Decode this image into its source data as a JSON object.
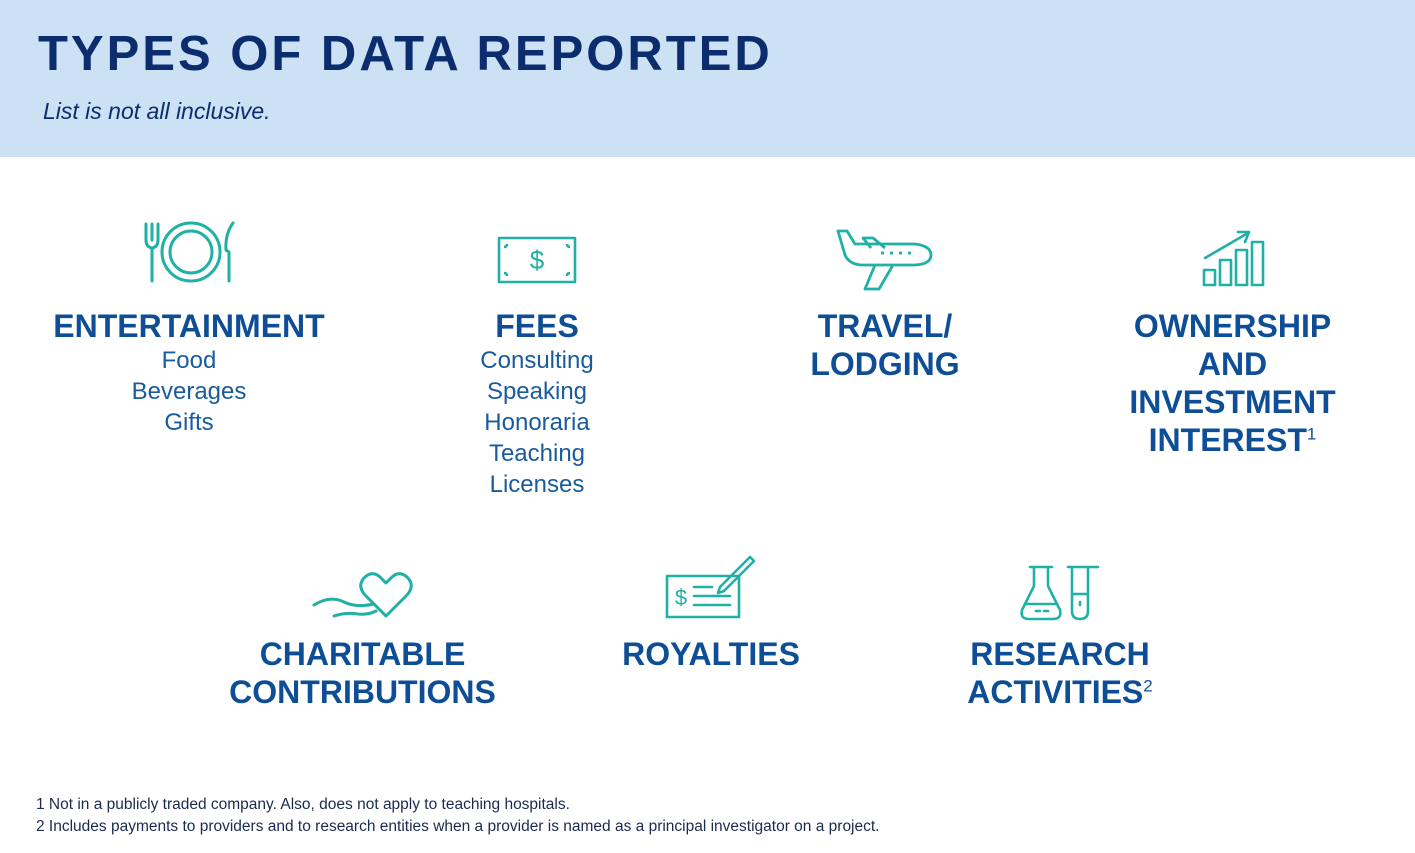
{
  "header": {
    "title": "TYPES OF DATA REPORTED",
    "subtitle": "List is not all inclusive."
  },
  "colors": {
    "header_bg": "#cde1f4",
    "title": "#0b2d6e",
    "category_title": "#0e4e96",
    "icon": "#1fb0a6"
  },
  "categories": [
    {
      "icon": "plate-fork-knife-icon",
      "title_lines": [
        "ENTERTAINMENT"
      ],
      "items": [
        "Food",
        "Beverages",
        "Gifts"
      ]
    },
    {
      "icon": "dollar-bill-icon",
      "title_lines": [
        "FEES"
      ],
      "items": [
        "Consulting",
        "Speaking",
        "Honoraria",
        "Teaching",
        "Licenses"
      ]
    },
    {
      "icon": "airplane-icon",
      "title_lines": [
        "TRAVEL/",
        "LODGING"
      ],
      "items": []
    },
    {
      "icon": "growth-chart-icon",
      "title_lines": [
        "OWNERSHIP",
        "AND",
        "INVESTMENT",
        "INTEREST"
      ],
      "title_superscript": "1",
      "items": []
    },
    {
      "icon": "heart-icon",
      "title_lines": [
        "CHARITABLE",
        "CONTRIBUTIONS"
      ],
      "items": []
    },
    {
      "icon": "check-pen-icon",
      "title_lines": [
        "ROYALTIES"
      ],
      "items": []
    },
    {
      "icon": "lab-flask-tube-icon",
      "title_lines": [
        "RESEARCH",
        "ACTIVITIES"
      ],
      "title_superscript": "2",
      "items": []
    }
  ],
  "footnotes": [
    "1 Not in a publicly traded company. Also, does not apply to teaching hospitals.",
    "2 Includes payments to providers and to research entities when a provider is named as a principal investigator on a project."
  ]
}
